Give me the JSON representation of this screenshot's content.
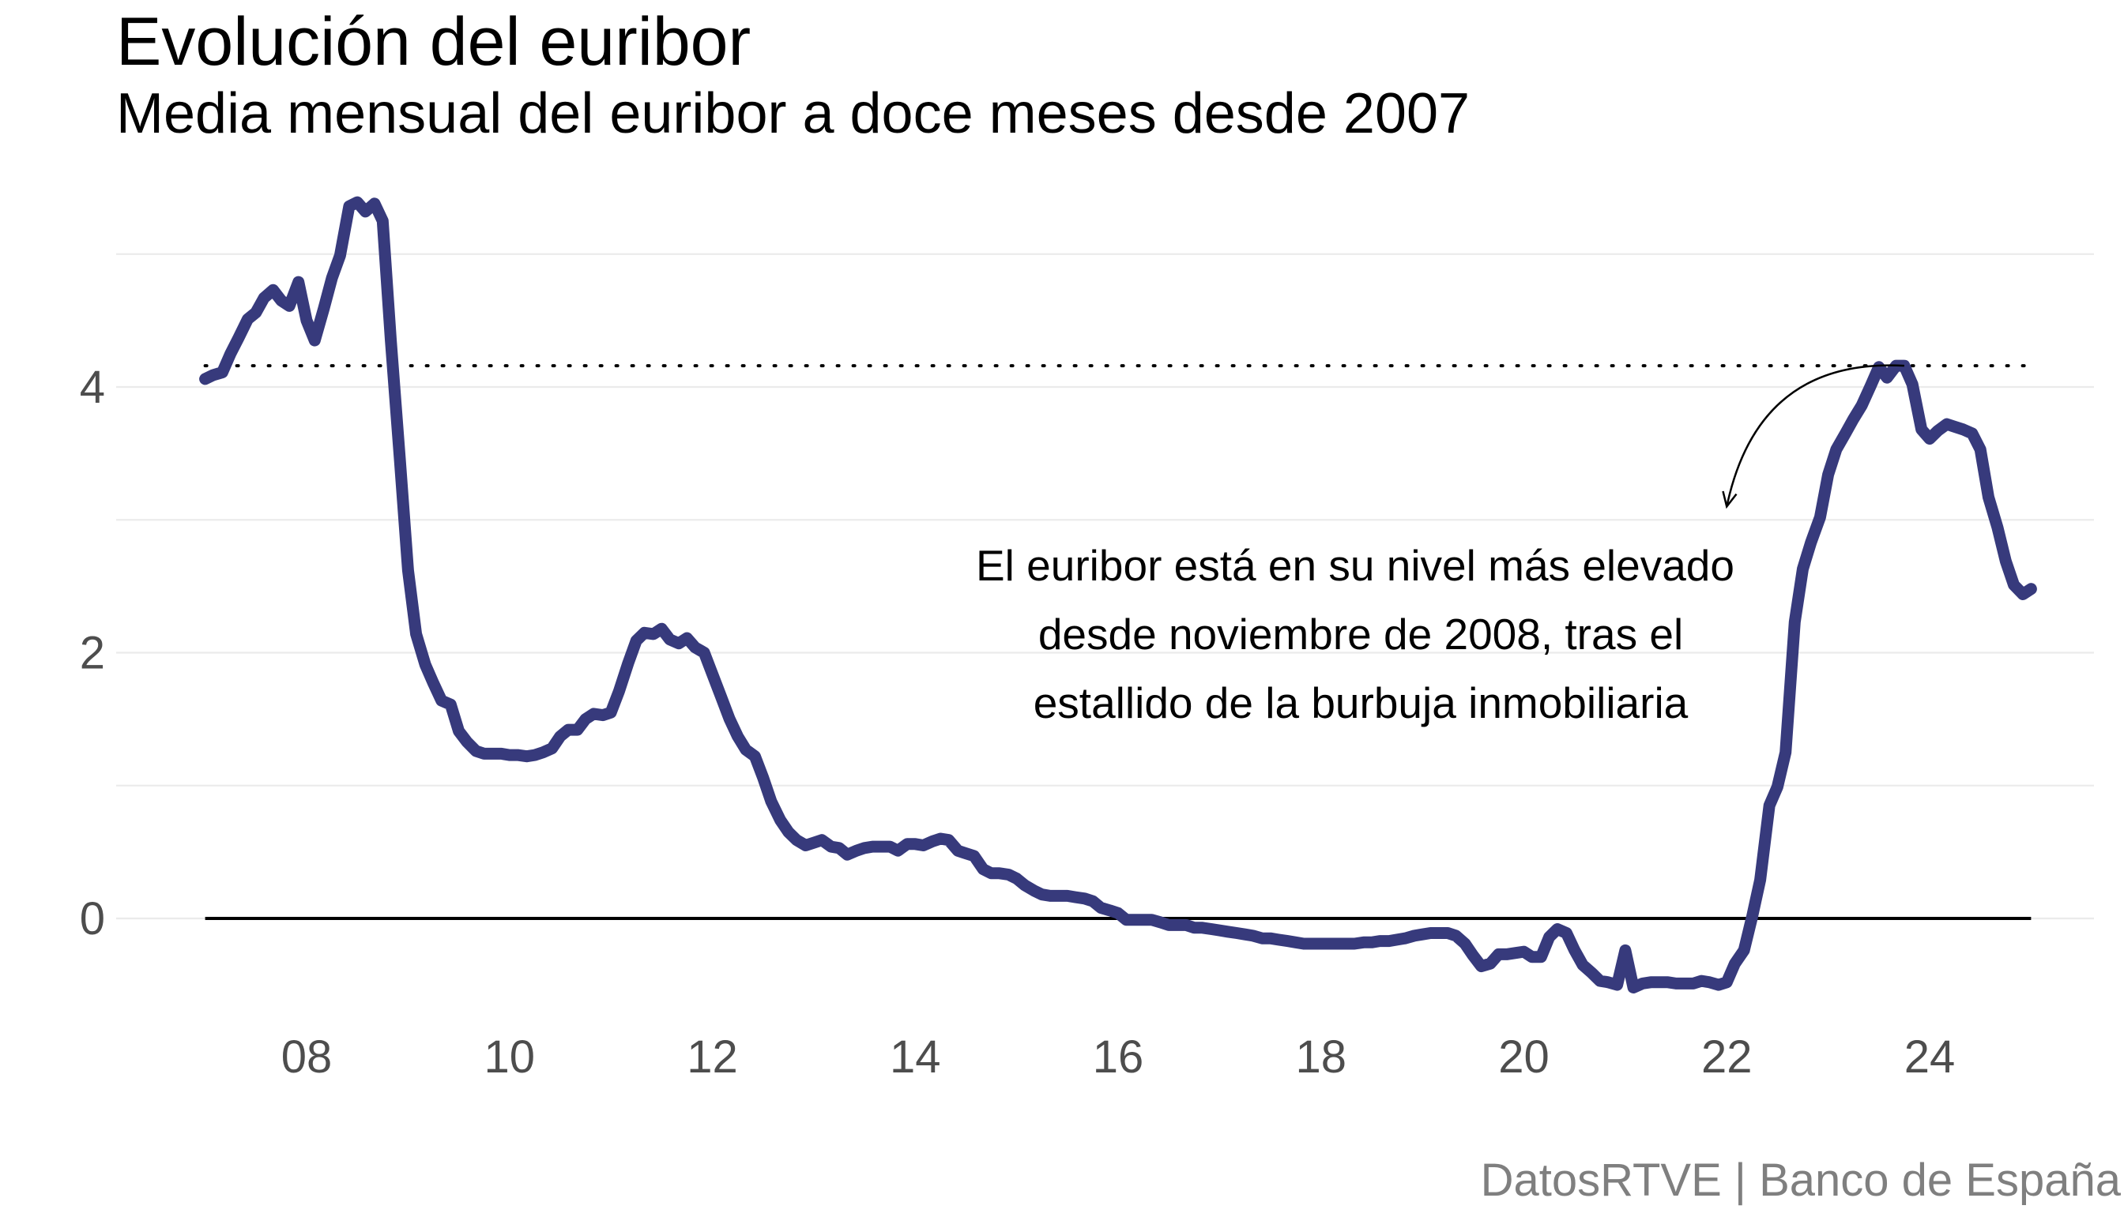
{
  "title": "Evolución del euribor",
  "subtitle": "Media mensual del euribor a doce meses desde 2007",
  "source": "DatosRTVE | Banco de España",
  "colors": {
    "series": "#373a7c",
    "grid": "#ebebeb",
    "baseline": "#000000",
    "tick_text": "#4d4d4d",
    "source_text": "#7f7f7f"
  },
  "annotation": {
    "lines": [
      "El euribor está en su nivel más elevado",
      "desde noviembre de 2008, tras el",
      "estallido de la burbuja inmobiliaria"
    ],
    "arrow_from_date": 2023.75,
    "arrow_from_value": 4.16,
    "arrow_to_date": 2022.0,
    "arrow_to_value": 3.1
  },
  "chart_data": {
    "type": "line",
    "title": "Evolución del euribor",
    "subtitle": "Media mensual del euribor a doce meses desde 2007",
    "xlabel": "",
    "ylabel": "",
    "xlim": [
      2006.5,
      2025.65
    ],
    "ylim": [
      -0.85,
      5.6
    ],
    "x_ticks": [
      2008,
      2010,
      2012,
      2014,
      2016,
      2018,
      2020,
      2022,
      2024
    ],
    "x_tick_labels": [
      "08",
      "10",
      "12",
      "14",
      "16",
      "18",
      "20",
      "22",
      "24"
    ],
    "y_ticks": [
      0,
      2,
      4
    ],
    "y_tick_labels": [
      "0",
      "2",
      "4"
    ],
    "y_minor_gridlines": [
      1,
      3,
      5
    ],
    "grid": true,
    "legend": "none",
    "reference_lines": [
      {
        "style": "dotted",
        "value": 4.16,
        "x_from": 2007.0,
        "x_to": 2025.0
      },
      {
        "style": "solid",
        "value": 0,
        "x_from": 2007.0,
        "x_to": 2025.0
      }
    ],
    "series": [
      {
        "color": "#373a7c",
        "points": [
          [
            2007.0,
            4.06
          ],
          [
            2007.08,
            4.09
          ],
          [
            2007.17,
            4.11
          ],
          [
            2007.25,
            4.25
          ],
          [
            2007.33,
            4.37
          ],
          [
            2007.42,
            4.51
          ],
          [
            2007.5,
            4.56
          ],
          [
            2007.58,
            4.67
          ],
          [
            2007.67,
            4.73
          ],
          [
            2007.75,
            4.65
          ],
          [
            2007.83,
            4.61
          ],
          [
            2007.92,
            4.79
          ],
          [
            2008.0,
            4.5
          ],
          [
            2008.08,
            4.35
          ],
          [
            2008.17,
            4.59
          ],
          [
            2008.25,
            4.82
          ],
          [
            2008.33,
            4.99
          ],
          [
            2008.42,
            5.36
          ],
          [
            2008.5,
            5.39
          ],
          [
            2008.58,
            5.32
          ],
          [
            2008.67,
            5.38
          ],
          [
            2008.75,
            5.25
          ],
          [
            2008.83,
            4.35
          ],
          [
            2008.92,
            3.45
          ],
          [
            2009.0,
            2.62
          ],
          [
            2009.08,
            2.14
          ],
          [
            2009.17,
            1.91
          ],
          [
            2009.25,
            1.77
          ],
          [
            2009.33,
            1.64
          ],
          [
            2009.42,
            1.61
          ],
          [
            2009.5,
            1.41
          ],
          [
            2009.58,
            1.33
          ],
          [
            2009.67,
            1.26
          ],
          [
            2009.75,
            1.24
          ],
          [
            2009.83,
            1.24
          ],
          [
            2009.92,
            1.24
          ],
          [
            2010.0,
            1.23
          ],
          [
            2010.08,
            1.23
          ],
          [
            2010.17,
            1.22
          ],
          [
            2010.25,
            1.23
          ],
          [
            2010.33,
            1.25
          ],
          [
            2010.42,
            1.28
          ],
          [
            2010.5,
            1.37
          ],
          [
            2010.58,
            1.42
          ],
          [
            2010.67,
            1.42
          ],
          [
            2010.75,
            1.5
          ],
          [
            2010.83,
            1.54
          ],
          [
            2010.92,
            1.53
          ],
          [
            2011.0,
            1.55
          ],
          [
            2011.08,
            1.71
          ],
          [
            2011.17,
            1.92
          ],
          [
            2011.25,
            2.09
          ],
          [
            2011.33,
            2.15
          ],
          [
            2011.42,
            2.14
          ],
          [
            2011.5,
            2.18
          ],
          [
            2011.58,
            2.1
          ],
          [
            2011.67,
            2.07
          ],
          [
            2011.75,
            2.11
          ],
          [
            2011.83,
            2.04
          ],
          [
            2011.92,
            2.0
          ],
          [
            2012.0,
            1.84
          ],
          [
            2012.08,
            1.68
          ],
          [
            2012.17,
            1.5
          ],
          [
            2012.25,
            1.37
          ],
          [
            2012.33,
            1.27
          ],
          [
            2012.42,
            1.22
          ],
          [
            2012.5,
            1.06
          ],
          [
            2012.58,
            0.88
          ],
          [
            2012.67,
            0.74
          ],
          [
            2012.75,
            0.65
          ],
          [
            2012.83,
            0.59
          ],
          [
            2012.92,
            0.55
          ],
          [
            2013.0,
            0.57
          ],
          [
            2013.08,
            0.59
          ],
          [
            2013.17,
            0.54
          ],
          [
            2013.25,
            0.53
          ],
          [
            2013.33,
            0.48
          ],
          [
            2013.42,
            0.51
          ],
          [
            2013.5,
            0.53
          ],
          [
            2013.58,
            0.54
          ],
          [
            2013.67,
            0.54
          ],
          [
            2013.75,
            0.54
          ],
          [
            2013.83,
            0.51
          ],
          [
            2013.92,
            0.56
          ],
          [
            2014.0,
            0.56
          ],
          [
            2014.08,
            0.55
          ],
          [
            2014.17,
            0.58
          ],
          [
            2014.25,
            0.6
          ],
          [
            2014.33,
            0.59
          ],
          [
            2014.42,
            0.51
          ],
          [
            2014.5,
            0.49
          ],
          [
            2014.58,
            0.47
          ],
          [
            2014.67,
            0.37
          ],
          [
            2014.75,
            0.34
          ],
          [
            2014.83,
            0.34
          ],
          [
            2014.92,
            0.33
          ],
          [
            2015.0,
            0.3
          ],
          [
            2015.08,
            0.25
          ],
          [
            2015.17,
            0.21
          ],
          [
            2015.25,
            0.18
          ],
          [
            2015.33,
            0.17
          ],
          [
            2015.42,
            0.17
          ],
          [
            2015.5,
            0.17
          ],
          [
            2015.58,
            0.16
          ],
          [
            2015.67,
            0.15
          ],
          [
            2015.75,
            0.13
          ],
          [
            2015.83,
            0.08
          ],
          [
            2015.92,
            0.06
          ],
          [
            2016.0,
            0.04
          ],
          [
            2016.08,
            -0.01
          ],
          [
            2016.17,
            -0.01
          ],
          [
            2016.25,
            -0.01
          ],
          [
            2016.33,
            -0.01
          ],
          [
            2016.42,
            -0.03
          ],
          [
            2016.5,
            -0.05
          ],
          [
            2016.58,
            -0.05
          ],
          [
            2016.67,
            -0.05
          ],
          [
            2016.75,
            -0.07
          ],
          [
            2016.83,
            -0.07
          ],
          [
            2016.92,
            -0.08
          ],
          [
            2017.0,
            -0.09
          ],
          [
            2017.08,
            -0.1
          ],
          [
            2017.17,
            -0.11
          ],
          [
            2017.25,
            -0.12
          ],
          [
            2017.33,
            -0.13
          ],
          [
            2017.42,
            -0.15
          ],
          [
            2017.5,
            -0.15
          ],
          [
            2017.58,
            -0.16
          ],
          [
            2017.67,
            -0.17
          ],
          [
            2017.75,
            -0.18
          ],
          [
            2017.83,
            -0.19
          ],
          [
            2017.92,
            -0.19
          ],
          [
            2018.0,
            -0.19
          ],
          [
            2018.08,
            -0.19
          ],
          [
            2018.17,
            -0.19
          ],
          [
            2018.25,
            -0.19
          ],
          [
            2018.33,
            -0.19
          ],
          [
            2018.42,
            -0.18
          ],
          [
            2018.5,
            -0.18
          ],
          [
            2018.58,
            -0.17
          ],
          [
            2018.67,
            -0.17
          ],
          [
            2018.75,
            -0.16
          ],
          [
            2018.83,
            -0.15
          ],
          [
            2018.92,
            -0.13
          ],
          [
            2019.0,
            -0.12
          ],
          [
            2019.08,
            -0.11
          ],
          [
            2019.17,
            -0.11
          ],
          [
            2019.25,
            -0.11
          ],
          [
            2019.33,
            -0.13
          ],
          [
            2019.42,
            -0.19
          ],
          [
            2019.5,
            -0.28
          ],
          [
            2019.58,
            -0.36
          ],
          [
            2019.67,
            -0.34
          ],
          [
            2019.75,
            -0.27
          ],
          [
            2019.83,
            -0.27
          ],
          [
            2019.92,
            -0.26
          ],
          [
            2020.0,
            -0.25
          ],
          [
            2020.08,
            -0.29
          ],
          [
            2020.17,
            -0.29
          ],
          [
            2020.25,
            -0.14
          ],
          [
            2020.33,
            -0.08
          ],
          [
            2020.42,
            -0.11
          ],
          [
            2020.5,
            -0.24
          ],
          [
            2020.58,
            -0.35
          ],
          [
            2020.67,
            -0.41
          ],
          [
            2020.75,
            -0.47
          ],
          [
            2020.83,
            -0.48
          ],
          [
            2020.92,
            -0.5
          ],
          [
            2021.0,
            -0.24
          ],
          [
            2021.08,
            -0.52
          ],
          [
            2021.17,
            -0.49
          ],
          [
            2021.25,
            -0.48
          ],
          [
            2021.33,
            -0.48
          ],
          [
            2021.42,
            -0.48
          ],
          [
            2021.5,
            -0.49
          ],
          [
            2021.58,
            -0.49
          ],
          [
            2021.67,
            -0.49
          ],
          [
            2021.75,
            -0.47
          ],
          [
            2021.83,
            -0.48
          ],
          [
            2021.92,
            -0.5
          ],
          [
            2022.0,
            -0.48
          ],
          [
            2022.08,
            -0.34
          ],
          [
            2022.17,
            -0.24
          ],
          [
            2022.25,
            0.01
          ],
          [
            2022.33,
            0.29
          ],
          [
            2022.42,
            0.85
          ],
          [
            2022.5,
            0.99
          ],
          [
            2022.58,
            1.25
          ],
          [
            2022.67,
            2.23
          ],
          [
            2022.75,
            2.63
          ],
          [
            2022.83,
            2.83
          ],
          [
            2022.92,
            3.02
          ],
          [
            2023.0,
            3.34
          ],
          [
            2023.08,
            3.53
          ],
          [
            2023.17,
            3.65
          ],
          [
            2023.25,
            3.76
          ],
          [
            2023.33,
            3.86
          ],
          [
            2023.42,
            4.01
          ],
          [
            2023.5,
            4.15
          ],
          [
            2023.58,
            4.07
          ],
          [
            2023.67,
            4.16
          ],
          [
            2023.75,
            4.16
          ],
          [
            2023.83,
            4.02
          ],
          [
            2023.92,
            3.68
          ],
          [
            2024.0,
            3.61
          ],
          [
            2024.08,
            3.67
          ],
          [
            2024.17,
            3.72
          ],
          [
            2024.25,
            3.7
          ],
          [
            2024.33,
            3.68
          ],
          [
            2024.42,
            3.65
          ],
          [
            2024.5,
            3.53
          ],
          [
            2024.58,
            3.17
          ],
          [
            2024.67,
            2.94
          ],
          [
            2024.75,
            2.69
          ],
          [
            2024.83,
            2.51
          ],
          [
            2024.92,
            2.44
          ],
          [
            2025.0,
            2.48
          ]
        ]
      }
    ]
  }
}
